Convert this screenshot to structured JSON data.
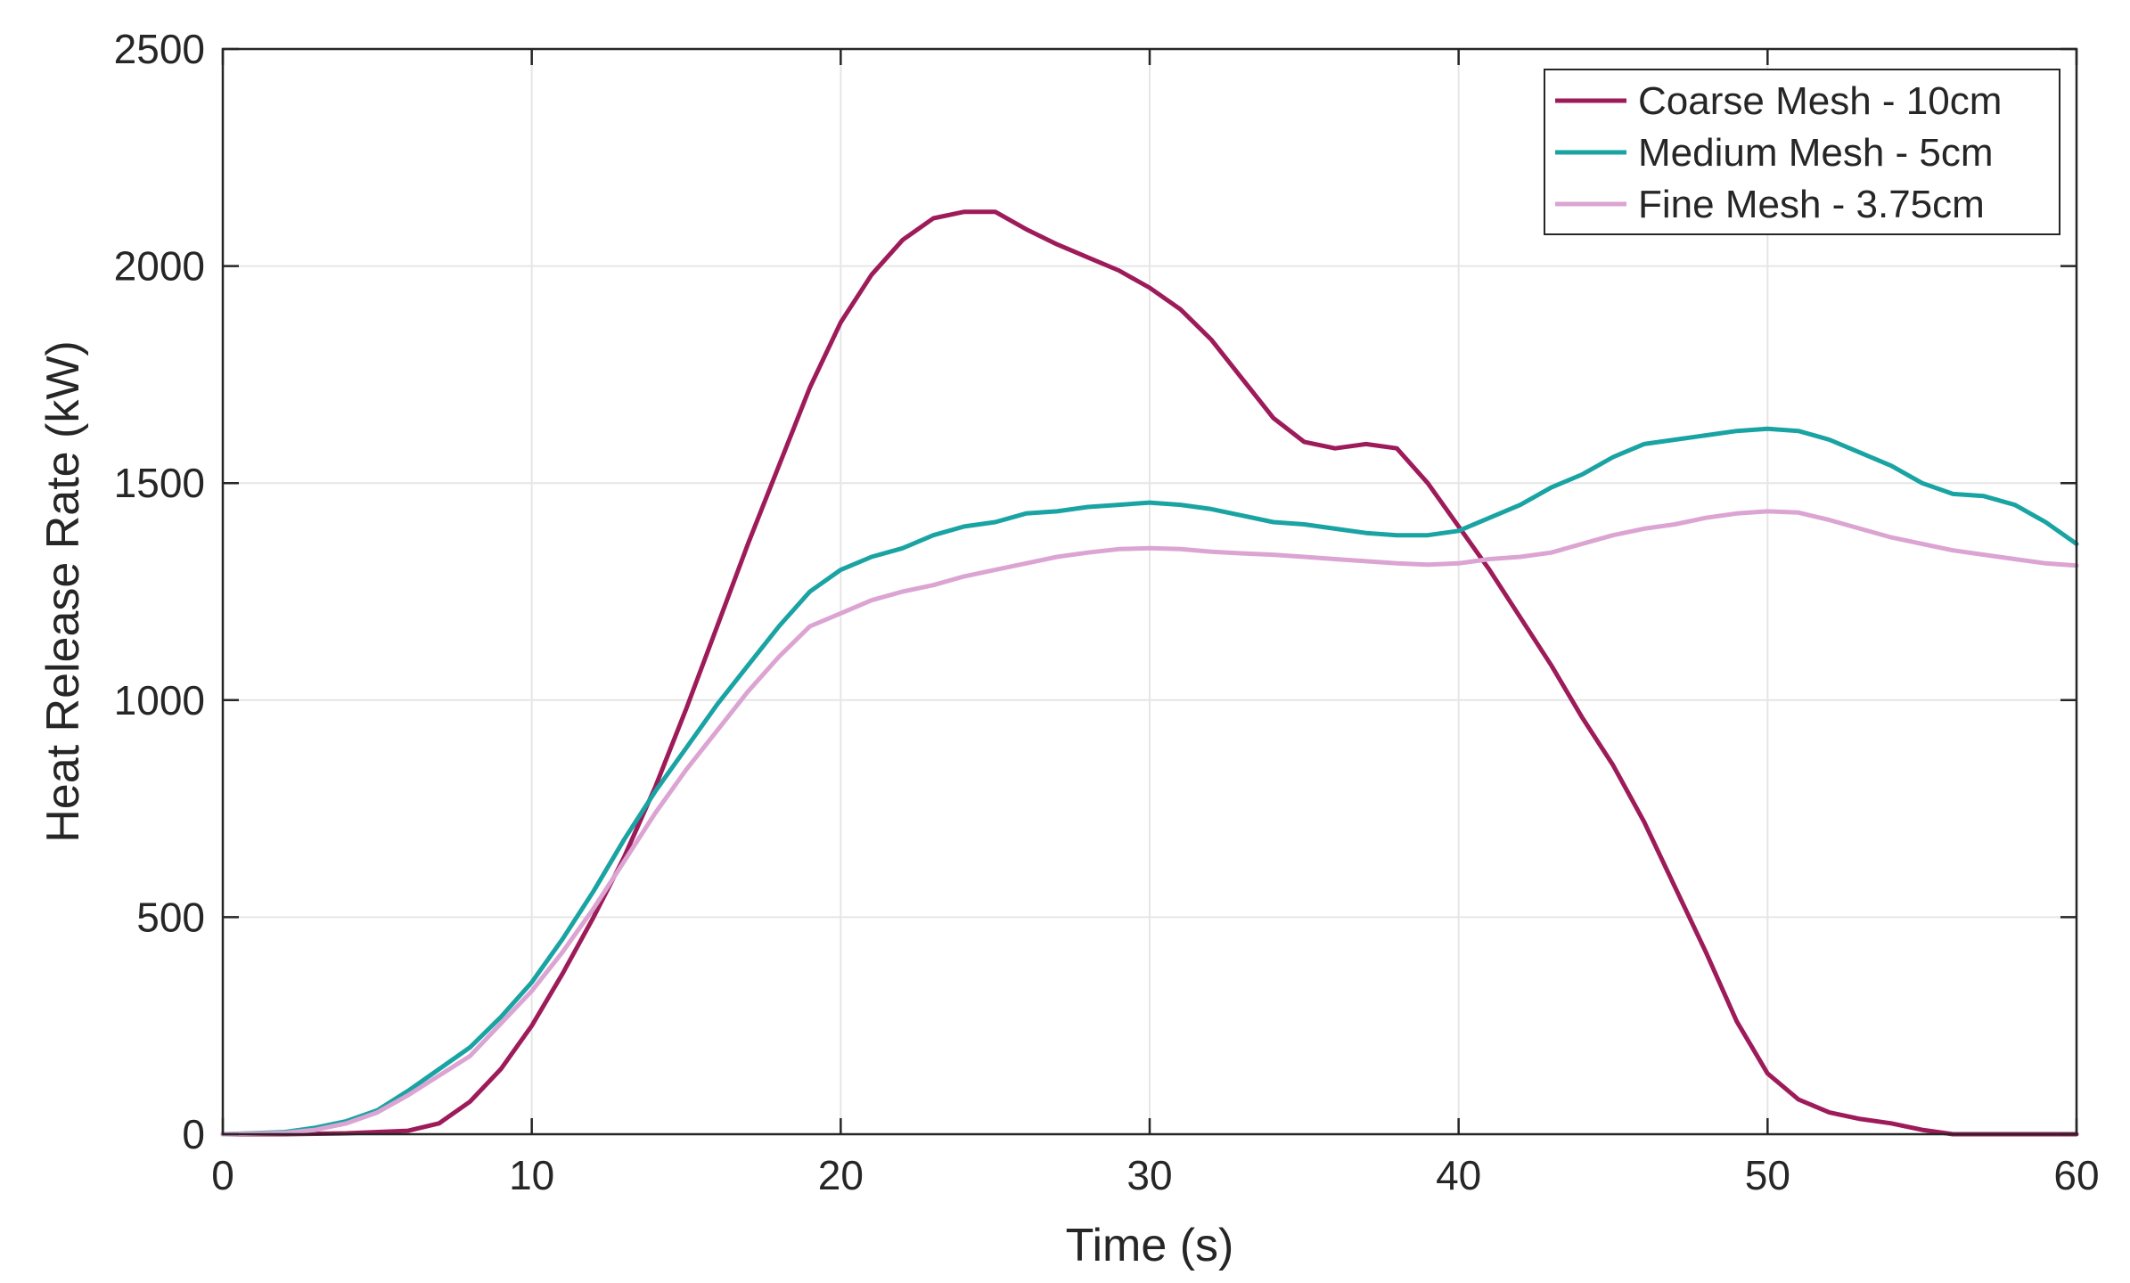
{
  "chart_data": {
    "type": "line",
    "title": "",
    "xlabel": "Time (s)",
    "ylabel": "Heat Release Rate (kW)",
    "xlim": [
      0,
      60
    ],
    "ylim": [
      0,
      2500
    ],
    "xticks": [
      0,
      10,
      20,
      30,
      40,
      50,
      60
    ],
    "yticks": [
      0,
      500,
      1000,
      1500,
      2000,
      2500
    ],
    "xtick_labels": [
      "0",
      "10",
      "20",
      "30",
      "40",
      "50",
      "60"
    ],
    "ytick_labels": [
      "0",
      "500",
      "1000",
      "1500",
      "2000",
      "2500"
    ],
    "grid": true,
    "legend_position": "top-right",
    "series": [
      {
        "name": "Coarse Mesh - 10cm",
        "color": "#9e1b5a",
        "x": [
          0,
          2,
          4,
          6,
          7,
          8,
          9,
          10,
          11,
          12,
          13,
          14,
          15,
          16,
          17,
          18,
          19,
          20,
          21,
          22,
          23,
          24,
          25,
          26,
          27,
          28,
          29,
          30,
          31,
          32,
          33,
          34,
          35,
          36,
          37,
          38,
          39,
          40,
          41,
          42,
          43,
          44,
          45,
          46,
          47,
          48,
          49,
          50,
          51,
          52,
          53,
          54,
          55,
          56,
          57,
          58,
          60
        ],
        "y": [
          0,
          0,
          2,
          8,
          25,
          75,
          150,
          250,
          370,
          500,
          640,
          800,
          980,
          1170,
          1360,
          1540,
          1720,
          1870,
          1980,
          2060,
          2110,
          2125,
          2125,
          2085,
          2050,
          2020,
          1990,
          1950,
          1900,
          1830,
          1740,
          1650,
          1595,
          1580,
          1590,
          1580,
          1500,
          1400,
          1300,
          1190,
          1080,
          960,
          850,
          720,
          570,
          420,
          260,
          140,
          80,
          50,
          35,
          25,
          10,
          0,
          0,
          0,
          0
        ]
      },
      {
        "name": "Medium Mesh - 5cm",
        "color": "#1aa3a3",
        "x": [
          0,
          2,
          3,
          4,
          5,
          6,
          7,
          8,
          9,
          10,
          11,
          12,
          13,
          14,
          15,
          16,
          17,
          18,
          19,
          20,
          21,
          22,
          23,
          24,
          25,
          26,
          27,
          28,
          29,
          30,
          31,
          32,
          33,
          34,
          35,
          36,
          37,
          38,
          39,
          40,
          41,
          42,
          43,
          44,
          45,
          46,
          47,
          48,
          49,
          50,
          51,
          52,
          53,
          54,
          55,
          56,
          57,
          58,
          59,
          60
        ],
        "y": [
          0,
          5,
          15,
          30,
          55,
          100,
          150,
          200,
          270,
          350,
          450,
          560,
          680,
          790,
          890,
          990,
          1080,
          1170,
          1250,
          1300,
          1330,
          1350,
          1380,
          1400,
          1410,
          1430,
          1435,
          1445,
          1450,
          1455,
          1450,
          1440,
          1425,
          1410,
          1405,
          1395,
          1385,
          1380,
          1380,
          1390,
          1420,
          1450,
          1490,
          1520,
          1560,
          1590,
          1600,
          1610,
          1620,
          1625,
          1620,
          1600,
          1570,
          1540,
          1500,
          1475,
          1470,
          1450,
          1410,
          1360
        ]
      },
      {
        "name": "Fine Mesh - 3.75cm",
        "color": "#dba4d2",
        "x": [
          0,
          2,
          3,
          4,
          5,
          6,
          7,
          8,
          9,
          10,
          11,
          12,
          13,
          14,
          15,
          16,
          17,
          18,
          19,
          20,
          21,
          22,
          23,
          24,
          25,
          26,
          27,
          28,
          29,
          30,
          31,
          32,
          33,
          34,
          35,
          36,
          37,
          38,
          39,
          40,
          41,
          42,
          43,
          44,
          45,
          46,
          47,
          48,
          49,
          50,
          51,
          52,
          53,
          54,
          55,
          56,
          57,
          58,
          59,
          60
        ],
        "y": [
          0,
          3,
          10,
          25,
          50,
          90,
          135,
          180,
          255,
          330,
          420,
          520,
          630,
          740,
          840,
          930,
          1020,
          1100,
          1170,
          1200,
          1230,
          1250,
          1265,
          1285,
          1300,
          1315,
          1330,
          1340,
          1348,
          1350,
          1348,
          1342,
          1338,
          1335,
          1330,
          1325,
          1320,
          1315,
          1312,
          1315,
          1325,
          1330,
          1340,
          1360,
          1380,
          1395,
          1405,
          1420,
          1430,
          1435,
          1432,
          1415,
          1395,
          1375,
          1360,
          1345,
          1335,
          1325,
          1315,
          1310
        ]
      }
    ]
  }
}
